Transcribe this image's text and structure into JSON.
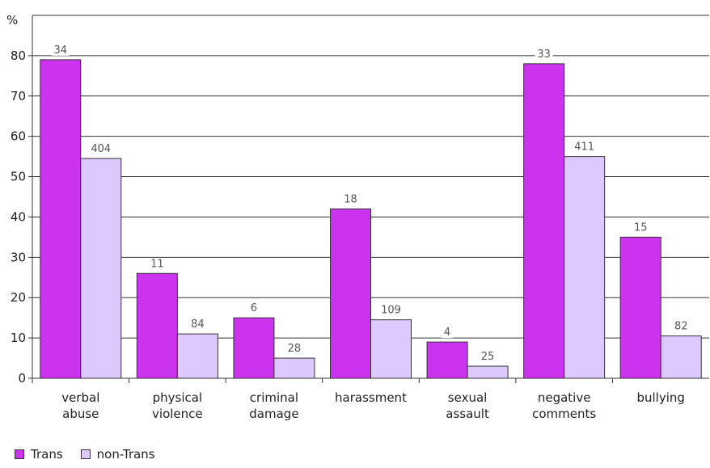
{
  "chart_data": {
    "type": "bar",
    "ylabel": "%",
    "ylim": [
      0,
      90
    ],
    "yticks": [
      0,
      10,
      20,
      30,
      40,
      50,
      60,
      70,
      80
    ],
    "grid": true,
    "legend_position": "bottom-left",
    "categories": [
      [
        "verbal",
        "abuse"
      ],
      [
        "physical",
        "violence"
      ],
      [
        "criminal",
        "damage"
      ],
      [
        "harassment"
      ],
      [
        "sexual",
        "assault"
      ],
      [
        "negative",
        "comments"
      ],
      [
        "bullying"
      ]
    ],
    "series": [
      {
        "name": "Trans",
        "color": "#cc33ee",
        "values": [
          79,
          26,
          15,
          42,
          9,
          78,
          35
        ],
        "labels": [
          "34",
          "11",
          "6",
          "18",
          "4",
          "33",
          "15"
        ]
      },
      {
        "name": "non-Trans",
        "color": "#ddc8ff",
        "values": [
          54.5,
          11,
          5,
          14.5,
          3,
          55,
          10.5
        ],
        "labels": [
          "404",
          "84",
          "28",
          "109",
          "25",
          "411",
          "82"
        ]
      }
    ]
  }
}
